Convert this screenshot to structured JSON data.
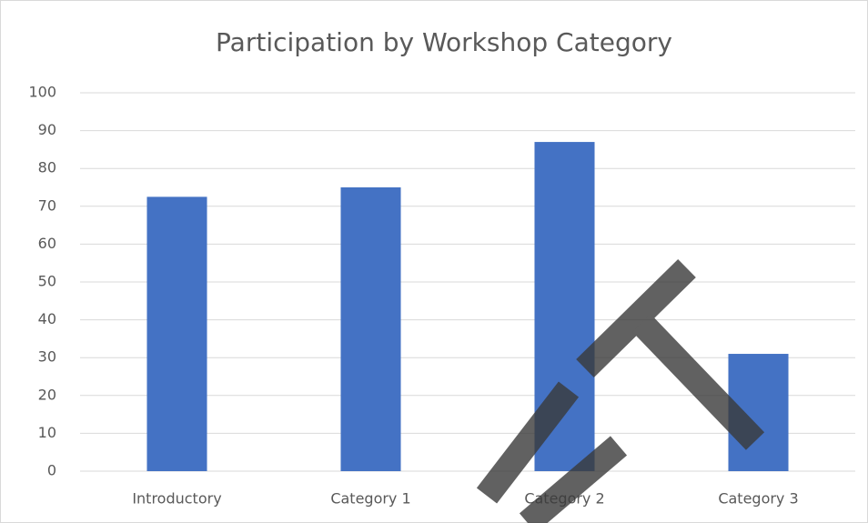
{
  "chart_data": {
    "type": "bar",
    "title": "Participation by Workshop Category",
    "categories": [
      "Introductory",
      "Category 1",
      "Category 2",
      "Category 3"
    ],
    "values": [
      72.5,
      75,
      87,
      31
    ],
    "color": "#4472c4",
    "ylim": [
      0,
      100
    ],
    "yticks": [
      0,
      10,
      20,
      30,
      40,
      50,
      60,
      70,
      80,
      90,
      100
    ],
    "grid": true
  }
}
